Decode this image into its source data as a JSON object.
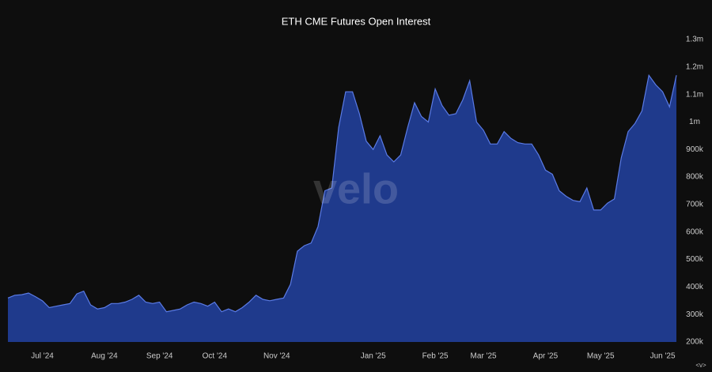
{
  "chart_data": {
    "type": "area",
    "title": "ETH CME Futures Open Interest",
    "watermark": "velo",
    "corner_label": "<v>",
    "categories": [
      null,
      null,
      null,
      null,
      null,
      "Jul '24",
      null,
      null,
      null,
      null,
      null,
      null,
      null,
      null,
      "Aug '24",
      null,
      null,
      null,
      null,
      null,
      null,
      null,
      "Sep '24",
      null,
      null,
      null,
      null,
      null,
      null,
      null,
      "Oct '24",
      null,
      null,
      null,
      null,
      null,
      null,
      null,
      null,
      "Nov '24",
      null,
      null,
      null,
      null,
      null,
      null,
      null,
      null,
      null,
      null,
      null,
      null,
      null,
      "Jan '25",
      null,
      null,
      null,
      null,
      null,
      null,
      null,
      null,
      "Feb '25",
      null,
      null,
      null,
      null,
      null,
      null,
      "Mar '25",
      null,
      null,
      null,
      null,
      null,
      null,
      null,
      null,
      "Apr '25",
      null,
      null,
      null,
      null,
      null,
      null,
      null,
      "May '25",
      null,
      null,
      null,
      null,
      null,
      null,
      null,
      null,
      "Jun '25",
      null,
      null
    ],
    "series": [
      {
        "name": "Open Interest",
        "color": "#1f3a8c",
        "line_color": "#5a7be6",
        "values": [
          360000,
          370000,
          372000,
          378000,
          365000,
          350000,
          325000,
          330000,
          335000,
          340000,
          375000,
          385000,
          335000,
          320000,
          325000,
          340000,
          340000,
          345000,
          355000,
          370000,
          345000,
          340000,
          345000,
          310000,
          315000,
          320000,
          335000,
          345000,
          340000,
          330000,
          345000,
          310000,
          320000,
          310000,
          325000,
          345000,
          370000,
          355000,
          350000,
          355000,
          360000,
          410000,
          530000,
          550000,
          560000,
          620000,
          750000,
          760000,
          980000,
          1110000,
          1110000,
          1030000,
          930000,
          900000,
          950000,
          880000,
          855000,
          880000,
          980000,
          1070000,
          1020000,
          1000000,
          1120000,
          1060000,
          1025000,
          1030000,
          1080000,
          1150000,
          1000000,
          970000,
          920000,
          920000,
          965000,
          940000,
          925000,
          920000,
          920000,
          880000,
          825000,
          810000,
          750000,
          730000,
          715000,
          710000,
          760000,
          680000,
          680000,
          705000,
          720000,
          870000,
          965000,
          995000,
          1040000,
          1170000,
          1135000,
          1110000,
          1055000,
          1170000
        ]
      }
    ],
    "ylim": [
      200000,
      1300000
    ],
    "yticks": [
      {
        "value": 200000,
        "label": "200k"
      },
      {
        "value": 300000,
        "label": "300k"
      },
      {
        "value": 400000,
        "label": "400k"
      },
      {
        "value": 500000,
        "label": "500k"
      },
      {
        "value": 600000,
        "label": "600k"
      },
      {
        "value": 700000,
        "label": "700k"
      },
      {
        "value": 800000,
        "label": "800k"
      },
      {
        "value": 900000,
        "label": "900k"
      },
      {
        "value": 1000000,
        "label": "1m"
      },
      {
        "value": 1100000,
        "label": "1.1m"
      },
      {
        "value": 1200000,
        "label": "1.2m"
      },
      {
        "value": 1300000,
        "label": "1.3m"
      }
    ],
    "grid": false
  }
}
